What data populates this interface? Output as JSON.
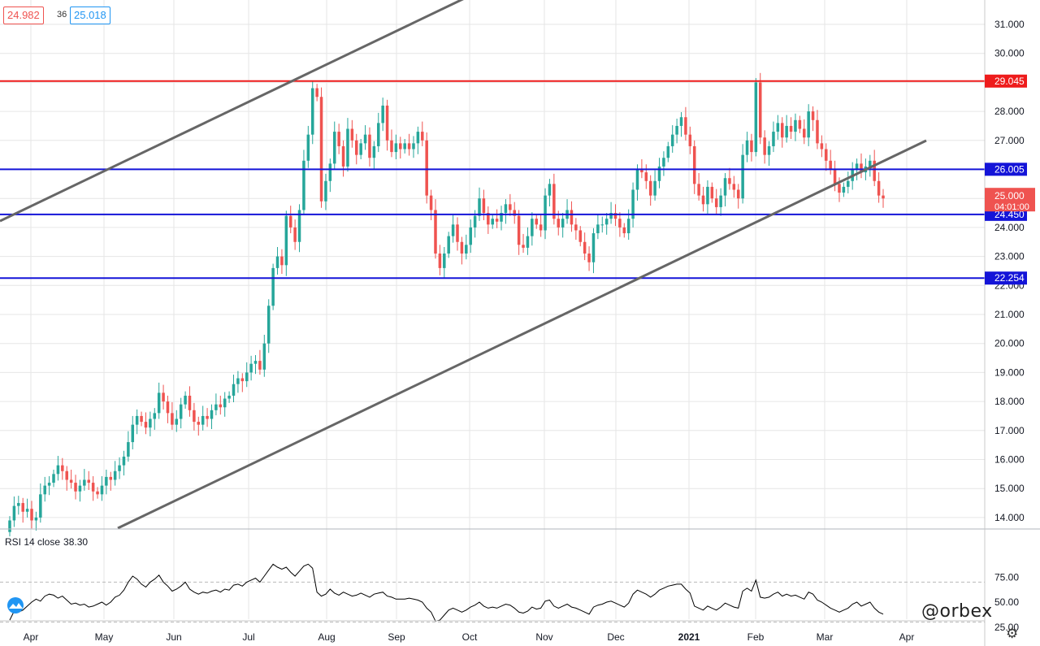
{
  "header": {
    "bid": "24.982",
    "spread": "36",
    "ask": "25.018"
  },
  "watermark": "@orbex",
  "chart_data": [
    {
      "type": "candlestick",
      "x_ticks": [
        "Apr",
        "May",
        "Jun",
        "Jul",
        "Aug",
        "Sep",
        "Oct",
        "Nov",
        "Dec",
        "2021",
        "Feb",
        "Mar",
        "Apr"
      ],
      "y_ticks": [
        "31.000",
        "30.000",
        "29.000",
        "28.000",
        "27.000",
        "26.000",
        "25.000",
        "24.000",
        "23.000",
        "22.000",
        "21.000",
        "20.000",
        "19.000",
        "18.000",
        "17.000",
        "16.000",
        "15.000",
        "14.000"
      ],
      "ylim": [
        13.7,
        31.8
      ],
      "closes": [
        13.9,
        14.4,
        14.5,
        14.2,
        14.3,
        13.9,
        14.0,
        14.8,
        15.1,
        15.2,
        15.5,
        15.8,
        15.6,
        15.3,
        15.2,
        14.9,
        15.1,
        15.3,
        15.2,
        14.9,
        14.8,
        15.1,
        15.4,
        15.3,
        15.6,
        15.8,
        16.1,
        16.6,
        17.2,
        17.5,
        17.3,
        17.1,
        17.4,
        17.6,
        18.3,
        18.0,
        17.6,
        17.2,
        17.4,
        17.9,
        18.2,
        17.7,
        17.3,
        17.2,
        17.5,
        17.4,
        17.7,
        17.9,
        17.8,
        18.1,
        18.2,
        18.6,
        18.8,
        18.7,
        19.0,
        19.3,
        19.4,
        19.1,
        20.0,
        21.3,
        22.6,
        23.0,
        22.7,
        24.4,
        24.0,
        23.5,
        24.6,
        26.3,
        27.2,
        28.8,
        28.5,
        24.9,
        25.6,
        26.2,
        27.3,
        26.8,
        26.1,
        27.4,
        27.0,
        26.5,
        26.9,
        27.2,
        26.4,
        26.8,
        27.6,
        28.2,
        27.0,
        26.6,
        26.9,
        26.7,
        26.9,
        26.7,
        26.9,
        27.3,
        27.0,
        25.1,
        24.6,
        23.1,
        22.6,
        23.1,
        23.7,
        24.1,
        23.5,
        23.1,
        23.4,
        24.0,
        24.4,
        25.0,
        24.5,
        24.1,
        24.3,
        24.2,
        24.5,
        24.8,
        24.6,
        24.4,
        23.4,
        23.3,
        23.7,
        24.3,
        24.1,
        23.9,
        25.1,
        25.5,
        24.3,
        24.0,
        24.3,
        24.6,
        24.1,
        23.9,
        23.5,
        23.1,
        22.8,
        23.8,
        24.1,
        24.1,
        24.3,
        24.5,
        24.3,
        24.0,
        23.8,
        24.3,
        25.3,
        26.0,
        25.9,
        25.6,
        25.1,
        25.6,
        26.1,
        26.4,
        26.8,
        27.2,
        27.5,
        27.8,
        27.2,
        26.8,
        25.5,
        25.1,
        24.8,
        25.4,
        25.0,
        24.7,
        25.1,
        25.7,
        25.5,
        25.3,
        25.0,
        26.5,
        27.0,
        26.6,
        29.0,
        27.1,
        26.5,
        26.8,
        27.3,
        27.6,
        27.1,
        27.5,
        27.3,
        27.7,
        27.4,
        27.1,
        28.0,
        27.7,
        26.9,
        26.7,
        26.3,
        26.0,
        25.5,
        25.2,
        25.4,
        25.6,
        26.0,
        26.2,
        25.9,
        26.1,
        26.3,
        25.6,
        25.1,
        25.0
      ],
      "levels": [
        {
          "value": 29.045,
          "label": "29.045",
          "color": "#ee1c1c"
        },
        {
          "value": 26.005,
          "label": "26.005",
          "color": "#1414d8"
        },
        {
          "value": 24.45,
          "label": "24.450",
          "color": "#1414d8"
        },
        {
          "value": 22.254,
          "label": "22.254",
          "color": "#1414d8"
        }
      ],
      "last_price": {
        "value": "25.000",
        "countdown": "04:01:00",
        "color": "#ef5350"
      },
      "colors": {
        "up": "#26a69a",
        "down": "#ef5350",
        "trendline": "#666666",
        "grid": "#e6e6e6"
      }
    },
    {
      "type": "line",
      "title": "RSI 14 close",
      "last_value": "38.30",
      "y_ticks": [
        "75.00",
        "50.00",
        "25.00"
      ],
      "ylim": [
        10,
        95
      ],
      "bands": [
        70,
        30
      ],
      "values": [
        32,
        41,
        40,
        42,
        46,
        50,
        53,
        51,
        56,
        58,
        57,
        54,
        56,
        52,
        48,
        49,
        47,
        48,
        45,
        46,
        48,
        50,
        47,
        50,
        55,
        57,
        62,
        70,
        76,
        73,
        68,
        65,
        70,
        73,
        77,
        70,
        66,
        61,
        63,
        66,
        70,
        63,
        60,
        58,
        60,
        59,
        61,
        62,
        60,
        63,
        62,
        67,
        68,
        66,
        70,
        72,
        74,
        70,
        76,
        82,
        88,
        85,
        83,
        85,
        80,
        76,
        81,
        86,
        88,
        84,
        60,
        56,
        58,
        63,
        59,
        57,
        60,
        58,
        56,
        57,
        59,
        57,
        55,
        58,
        59,
        60,
        56,
        55,
        53,
        53,
        53,
        54,
        53,
        52,
        50,
        44,
        40,
        31,
        32,
        37,
        42,
        44,
        42,
        40,
        42,
        45,
        47,
        50,
        46,
        44,
        45,
        44,
        46,
        48,
        47,
        44,
        40,
        39,
        41,
        45,
        43,
        44,
        51,
        52,
        46,
        44,
        46,
        48,
        45,
        44,
        42,
        40,
        38,
        45,
        47,
        48,
        50,
        51,
        49,
        47,
        45,
        49,
        58,
        62,
        60,
        58,
        55,
        58,
        62,
        64,
        66,
        67,
        68,
        68,
        63,
        59,
        46,
        44,
        42,
        46,
        44,
        42,
        45,
        49,
        47,
        45,
        44,
        61,
        64,
        61,
        72,
        55,
        54,
        55,
        58,
        60,
        56,
        58,
        56,
        57,
        55,
        53,
        60,
        58,
        52,
        50,
        47,
        44,
        42,
        40,
        42,
        44,
        48,
        50,
        46,
        48,
        50,
        44,
        40,
        38
      ]
    }
  ]
}
